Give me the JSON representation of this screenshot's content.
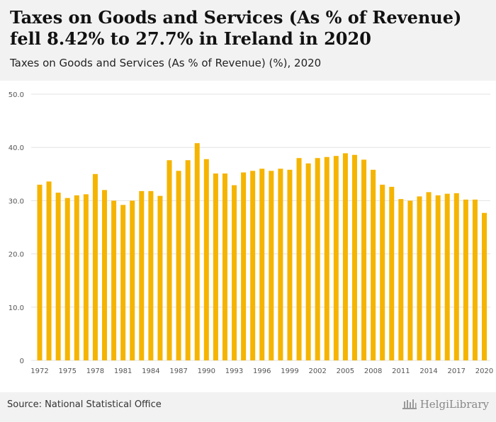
{
  "header": {
    "title": "Taxes on Goods and Services (As % of Revenue) fell 8.42% to 27.7% in Ireland in 2020",
    "subtitle": "Taxes on Goods and Services (As % of Revenue) (%), 2020"
  },
  "footer": {
    "source": "Source: National Statistical Office",
    "brand": "HelgiLibrary"
  },
  "colors": {
    "bar": "#f5b400",
    "grid": "#e3e3e3",
    "axis_text": "#555555"
  },
  "chart_data": {
    "type": "bar",
    "title": "",
    "xlabel": "",
    "ylabel": "",
    "ylim": [
      0,
      50
    ],
    "yticks": [
      0,
      10.0,
      20.0,
      30.0,
      40.0,
      50.0
    ],
    "ytick_labels": [
      "0",
      "10.0",
      "20.0",
      "30.0",
      "40.0",
      "50.0"
    ],
    "categories": [
      "1972",
      "1973",
      "1974",
      "1975",
      "1976",
      "1977",
      "1978",
      "1979",
      "1980",
      "1981",
      "1982",
      "1983",
      "1984",
      "1985",
      "1986",
      "1987",
      "1988",
      "1989",
      "1990",
      "1991",
      "1992",
      "1993",
      "1994",
      "1995",
      "1996",
      "1997",
      "1998",
      "1999",
      "2000",
      "2001",
      "2002",
      "2003",
      "2004",
      "2005",
      "2006",
      "2007",
      "2008",
      "2009",
      "2010",
      "2011",
      "2012",
      "2013",
      "2014",
      "2015",
      "2016",
      "2017",
      "2018",
      "2019",
      "2020"
    ],
    "xtick_labels": [
      "1972",
      "1975",
      "1978",
      "1981",
      "1984",
      "1987",
      "1990",
      "1993",
      "1996",
      "1999",
      "2002",
      "2005",
      "2008",
      "2011",
      "2014",
      "2017",
      "2020"
    ],
    "values": [
      33.0,
      33.6,
      31.5,
      30.5,
      31.0,
      31.2,
      35.0,
      32.0,
      30.0,
      29.2,
      30.0,
      31.8,
      31.8,
      30.9,
      37.6,
      35.6,
      37.6,
      40.8,
      37.8,
      35.1,
      35.1,
      32.9,
      35.3,
      35.6,
      36.0,
      35.6,
      36.0,
      35.8,
      38.0,
      37.0,
      38.0,
      38.2,
      38.4,
      38.9,
      38.6,
      37.7,
      35.8,
      33.0,
      32.6,
      30.3,
      30.0,
      30.8,
      31.6,
      31.0,
      31.3,
      31.4,
      30.2,
      30.2,
      27.7
    ],
    "grid": true,
    "legend": "none"
  }
}
